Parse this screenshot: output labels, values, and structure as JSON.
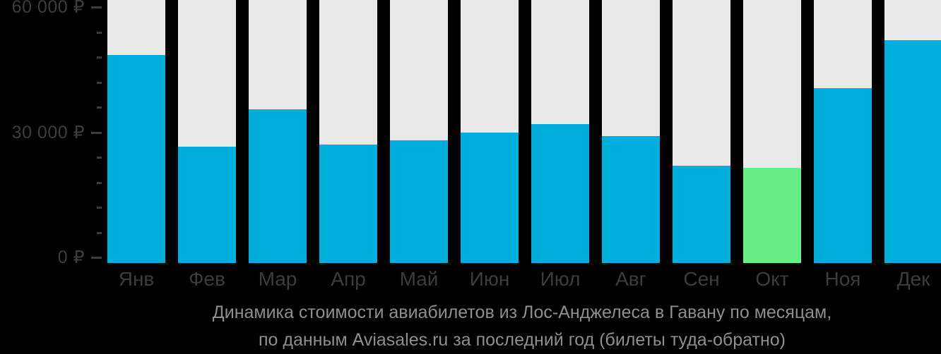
{
  "chart_data": {
    "type": "bar",
    "categories": [
      "Янв",
      "Фев",
      "Мар",
      "Апр",
      "Май",
      "Июн",
      "Июл",
      "Авг",
      "Сен",
      "Окт",
      "Ноя",
      "Дек"
    ],
    "values": [
      48500,
      26500,
      35500,
      27000,
      28000,
      30000,
      32000,
      29000,
      22000,
      21500,
      40500,
      52000
    ],
    "unit": "₽",
    "highlight": {
      "index": 9,
      "category": "Окт"
    },
    "y_axis": {
      "major_ticks": [
        {
          "value": 60000,
          "label": "60 000 ₽"
        },
        {
          "value": 30000,
          "label": "30 000 ₽"
        },
        {
          "value": 0,
          "label": "0 ₽"
        }
      ],
      "minor_tick_step": 6000,
      "range": [
        0,
        61700
      ]
    },
    "legend": "none",
    "grid": false,
    "background_track": true
  },
  "caption": {
    "line1": "Динамика стоимости авиабилетов из Лос-Анджелеса в Гавану по месяцам,",
    "line2": "по данным Aviasales.ru за последний год (билеты туда-обратно)"
  },
  "colors": {
    "background": "#000000",
    "bar": "#00aedc",
    "highlight": "#66ee87",
    "track": "#e9e9e9",
    "axis_text": "#3c3c3c",
    "tick": "#3c3c3c",
    "caption_text": "#8e8e8e"
  }
}
